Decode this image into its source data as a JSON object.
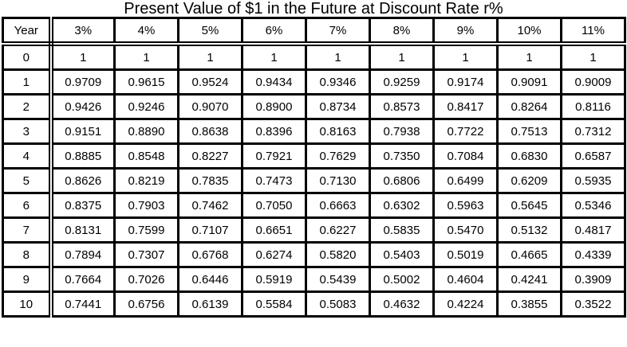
{
  "title": "Present Value of $1 in the Future at Discount Rate r%",
  "colors": {
    "border": "#000000",
    "background": "#ffffff",
    "text": "#000000"
  },
  "table": {
    "columns": [
      "Year",
      "3%",
      "4%",
      "5%",
      "6%",
      "7%",
      "8%",
      "9%",
      "10%",
      "11%"
    ],
    "rows": [
      {
        "year": "0",
        "values": [
          "1",
          "1",
          "1",
          "1",
          "1",
          "1",
          "1",
          "1",
          "1"
        ]
      },
      {
        "year": "1",
        "values": [
          "0.9709",
          "0.9615",
          "0.9524",
          "0.9434",
          "0.9346",
          "0.9259",
          "0.9174",
          "0.9091",
          "0.9009"
        ]
      },
      {
        "year": "2",
        "values": [
          "0.9426",
          "0.9246",
          "0.9070",
          "0.8900",
          "0.8734",
          "0.8573",
          "0.8417",
          "0.8264",
          "0.8116"
        ]
      },
      {
        "year": "3",
        "values": [
          "0.9151",
          "0.8890",
          "0.8638",
          "0.8396",
          "0.8163",
          "0.7938",
          "0.7722",
          "0.7513",
          "0.7312"
        ]
      },
      {
        "year": "4",
        "values": [
          "0.8885",
          "0.8548",
          "0.8227",
          "0.7921",
          "0.7629",
          "0.7350",
          "0.7084",
          "0.6830",
          "0.6587"
        ]
      },
      {
        "year": "5",
        "values": [
          "0.8626",
          "0.8219",
          "0.7835",
          "0.7473",
          "0.7130",
          "0.6806",
          "0.6499",
          "0.6209",
          "0.5935"
        ]
      },
      {
        "year": "6",
        "values": [
          "0.8375",
          "0.7903",
          "0.7462",
          "0.7050",
          "0.6663",
          "0.6302",
          "0.5963",
          "0.5645",
          "0.5346"
        ]
      },
      {
        "year": "7",
        "values": [
          "0.8131",
          "0.7599",
          "0.7107",
          "0.6651",
          "0.6227",
          "0.5835",
          "0.5470",
          "0.5132",
          "0.4817"
        ]
      },
      {
        "year": "8",
        "values": [
          "0.7894",
          "0.7307",
          "0.6768",
          "0.6274",
          "0.5820",
          "0.5403",
          "0.5019",
          "0.4665",
          "0.4339"
        ]
      },
      {
        "year": "9",
        "values": [
          "0.7664",
          "0.7026",
          "0.6446",
          "0.5919",
          "0.5439",
          "0.5002",
          "0.4604",
          "0.4241",
          "0.3909"
        ]
      },
      {
        "year": "10",
        "values": [
          "0.7441",
          "0.6756",
          "0.6139",
          "0.5584",
          "0.5083",
          "0.4632",
          "0.4224",
          "0.3855",
          "0.3522"
        ]
      }
    ]
  },
  "chart_data": {
    "type": "table",
    "title": "Present Value of $1 in the Future at Discount Rate r%",
    "columns": [
      "Year",
      "3%",
      "4%",
      "5%",
      "6%",
      "7%",
      "8%",
      "9%",
      "10%",
      "11%"
    ],
    "rows": [
      [
        "0",
        "1",
        "1",
        "1",
        "1",
        "1",
        "1",
        "1",
        "1",
        "1"
      ],
      [
        "1",
        "0.9709",
        "0.9615",
        "0.9524",
        "0.9434",
        "0.9346",
        "0.9259",
        "0.9174",
        "0.9091",
        "0.9009"
      ],
      [
        "2",
        "0.9426",
        "0.9246",
        "0.9070",
        "0.8900",
        "0.8734",
        "0.8573",
        "0.8417",
        "0.8264",
        "0.8116"
      ],
      [
        "3",
        "0.9151",
        "0.8890",
        "0.8638",
        "0.8396",
        "0.8163",
        "0.7938",
        "0.7722",
        "0.7513",
        "0.7312"
      ],
      [
        "4",
        "0.8885",
        "0.8548",
        "0.8227",
        "0.7921",
        "0.7629",
        "0.7350",
        "0.7084",
        "0.6830",
        "0.6587"
      ],
      [
        "5",
        "0.8626",
        "0.8219",
        "0.7835",
        "0.7473",
        "0.7130",
        "0.6806",
        "0.6499",
        "0.6209",
        "0.5935"
      ],
      [
        "6",
        "0.8375",
        "0.7903",
        "0.7462",
        "0.7050",
        "0.6663",
        "0.6302",
        "0.5963",
        "0.5645",
        "0.5346"
      ],
      [
        "7",
        "0.8131",
        "0.7599",
        "0.7107",
        "0.6651",
        "0.6227",
        "0.5835",
        "0.5470",
        "0.5132",
        "0.4817"
      ],
      [
        "8",
        "0.7894",
        "0.7307",
        "0.6768",
        "0.6274",
        "0.5820",
        "0.5403",
        "0.5019",
        "0.4665",
        "0.4339"
      ],
      [
        "9",
        "0.7664",
        "0.7026",
        "0.6446",
        "0.5919",
        "0.5439",
        "0.5002",
        "0.4604",
        "0.4241",
        "0.3909"
      ],
      [
        "10",
        "0.7441",
        "0.6756",
        "0.6139",
        "0.5584",
        "0.5083",
        "0.4632",
        "0.4224",
        "0.3855",
        "0.3522"
      ]
    ]
  }
}
